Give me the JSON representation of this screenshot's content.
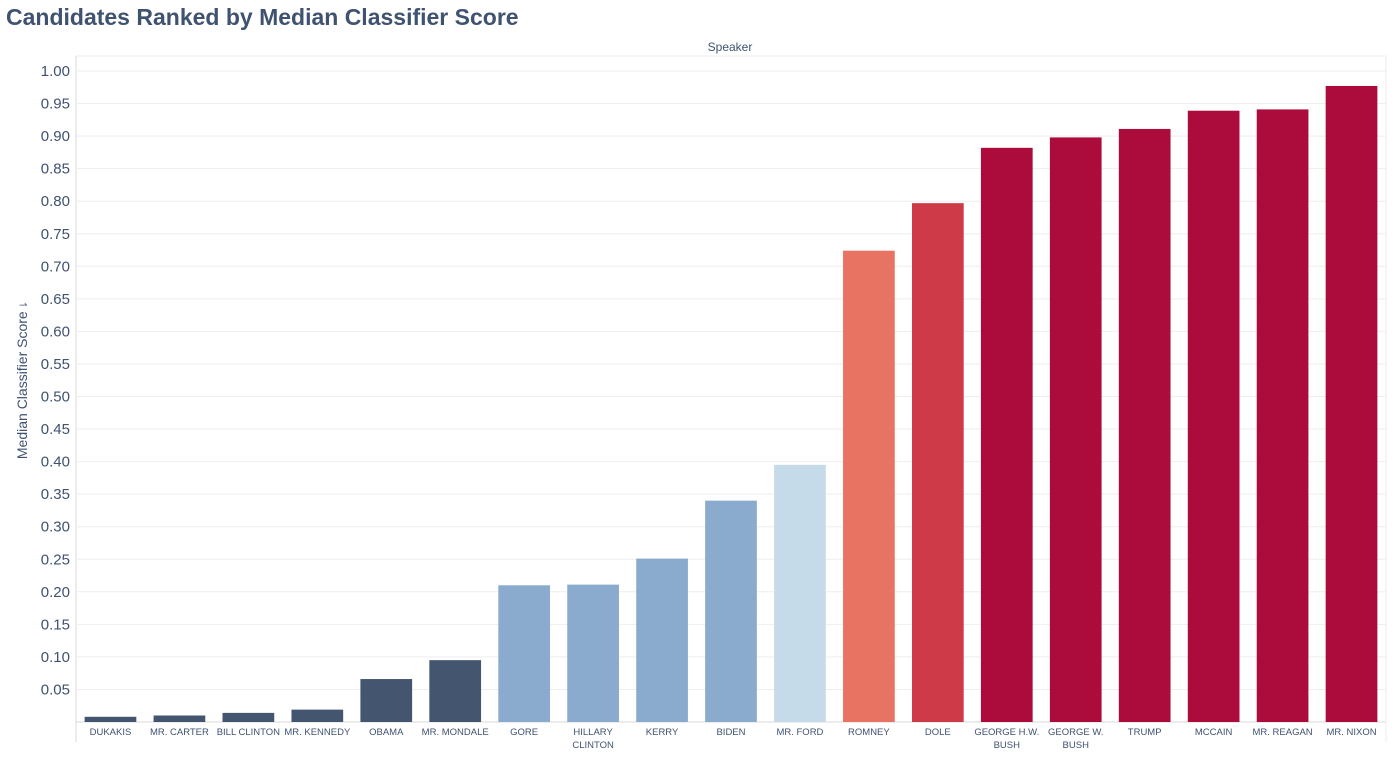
{
  "title": "Candidates Ranked by Median Classifier Score",
  "facet_label": "Speaker",
  "sort_icon": "sort-icon",
  "chart_data": {
    "type": "bar",
    "title": "Candidates Ranked by Median Classifier Score",
    "xlabel": "Speaker",
    "ylabel": "Median Classifier Score",
    "ylim": [
      0,
      1.0
    ],
    "yticks": [
      "0.05",
      "0.10",
      "0.15",
      "0.20",
      "0.25",
      "0.30",
      "0.35",
      "0.40",
      "0.45",
      "0.50",
      "0.55",
      "0.60",
      "0.65",
      "0.70",
      "0.75",
      "0.80",
      "0.85",
      "0.90",
      "0.95",
      "1.00"
    ],
    "grid": true,
    "categories": [
      [
        "DUKAKIS"
      ],
      [
        "MR. CARTER"
      ],
      [
        "BILL CLINTON"
      ],
      [
        "MR. KENNEDY"
      ],
      [
        "OBAMA"
      ],
      [
        "MR. MONDALE"
      ],
      [
        "GORE"
      ],
      [
        "HILLARY",
        "CLINTON"
      ],
      [
        "KERRY"
      ],
      [
        "BIDEN"
      ],
      [
        "MR. FORD"
      ],
      [
        "ROMNEY"
      ],
      [
        "DOLE"
      ],
      [
        "GEORGE H.W.",
        "BUSH"
      ],
      [
        "GEORGE W.",
        "BUSH"
      ],
      [
        "TRUMP"
      ],
      [
        "MCCAIN"
      ],
      [
        "MR. REAGAN"
      ],
      [
        "MR. NIXON"
      ]
    ],
    "values": [
      0.008,
      0.01,
      0.014,
      0.019,
      0.066,
      0.095,
      0.21,
      0.211,
      0.251,
      0.34,
      0.395,
      0.724,
      0.797,
      0.882,
      0.898,
      0.911,
      0.939,
      0.941,
      0.977
    ],
    "colors": [
      "#44566f",
      "#44566f",
      "#44566f",
      "#44566f",
      "#44566f",
      "#44566f",
      "#8aabcd",
      "#8aabcd",
      "#8aabcd",
      "#8aabcd",
      "#c6dbea",
      "#e97362",
      "#cf3a48",
      "#ab0c3c",
      "#ab0c3c",
      "#ab0c3c",
      "#ab0c3c",
      "#ab0c3c",
      "#ab0c3c"
    ]
  }
}
